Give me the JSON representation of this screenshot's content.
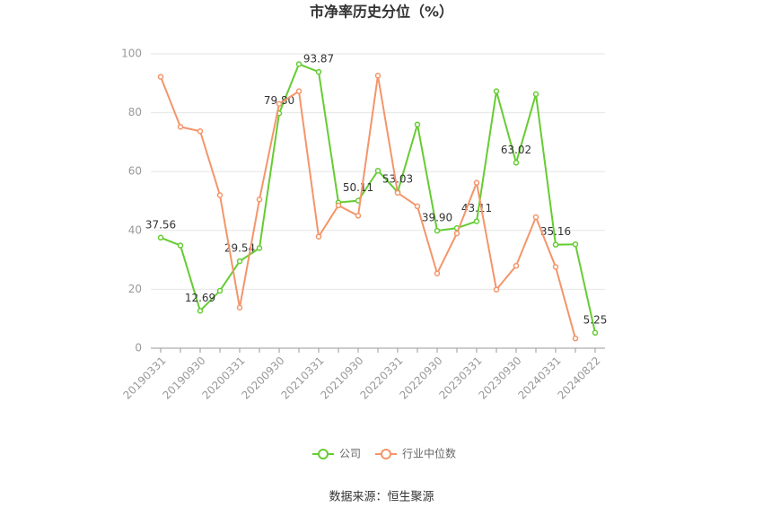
{
  "chart_data": {
    "type": "line",
    "title": "市净率历史分位（%）",
    "categories": [
      "20190331",
      null,
      "20190930",
      null,
      "20200331",
      null,
      "20200930",
      null,
      "20210331",
      null,
      "20210930",
      null,
      "20220331",
      null,
      "20220930",
      null,
      "20230331",
      null,
      "20230930",
      null,
      "20240331",
      null,
      "20240822"
    ],
    "series": [
      {
        "name": "公司",
        "color": "#66cc33",
        "values": [
          37.56,
          34.9,
          12.69,
          19.5,
          29.54,
          34,
          79.8,
          96.5,
          93.87,
          49.5,
          50.11,
          60.3,
          53.03,
          76,
          39.9,
          40.8,
          43.11,
          87.3,
          63.02,
          86.3,
          35.16,
          35.3,
          5.25
        ],
        "value_labels": [
          "37.56",
          null,
          "12.69",
          null,
          "29.54",
          null,
          "79.80",
          null,
          "93.87",
          null,
          "50.11",
          null,
          "53.03",
          null,
          "39.90",
          null,
          "43.11",
          null,
          "63.02",
          null,
          "35.16",
          null,
          "5.25"
        ]
      },
      {
        "name": "行业中位数",
        "color": "#f4956a",
        "values": [
          92.2,
          75.2,
          73.7,
          52,
          13.8,
          50.5,
          83,
          87.3,
          37.9,
          48.5,
          45,
          92.6,
          52.8,
          48.2,
          25.4,
          39,
          56.2,
          19.9,
          28,
          44.5,
          27.6,
          3.3,
          null
        ]
      }
    ],
    "ylim": [
      0,
      100
    ],
    "yticks": [
      0,
      20,
      40,
      60,
      80,
      100
    ],
    "grid": true,
    "legend": "bottom",
    "source": "数据来源：恒生聚源"
  }
}
